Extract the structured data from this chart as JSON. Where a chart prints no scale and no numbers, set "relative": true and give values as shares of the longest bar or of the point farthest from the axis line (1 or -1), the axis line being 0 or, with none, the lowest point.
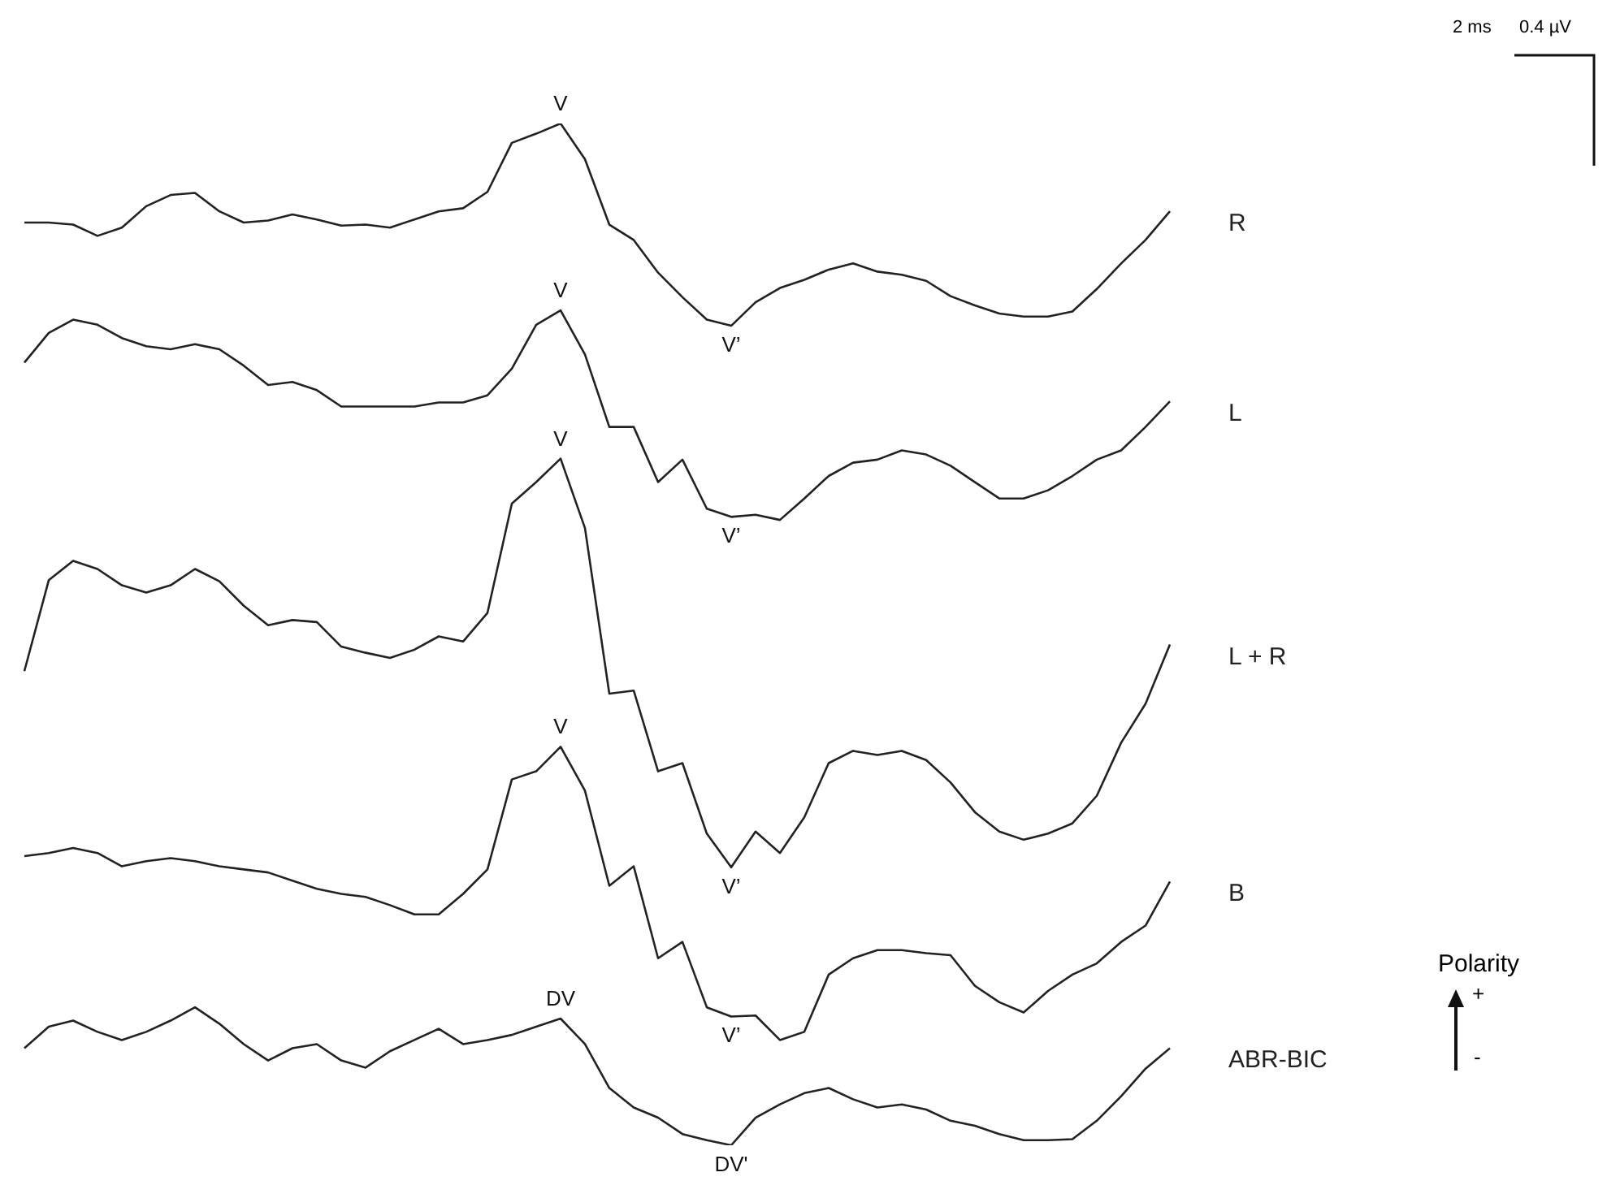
{
  "chart_data": {
    "type": "line",
    "relative": true,
    "legend": false,
    "grid": false,
    "marker": "none",
    "line_style": "solid",
    "categories": [
      null,
      null,
      null,
      null,
      null,
      null,
      null,
      null,
      null,
      null,
      null,
      null,
      null,
      null,
      null,
      null,
      null,
      null,
      null,
      null,
      null,
      null,
      null,
      null,
      null,
      null,
      null,
      null,
      null,
      null,
      null,
      null,
      null,
      null,
      null,
      null,
      null,
      null,
      null,
      null,
      null,
      null,
      null,
      null,
      null,
      null,
      null,
      null
    ],
    "series": [
      {
        "name": "R",
        "color": "#222222",
        "values": [
          0.903,
          0.903,
          0.901,
          0.89,
          0.898,
          0.919,
          0.93,
          0.932,
          0.914,
          0.903,
          0.905,
          0.911,
          0.906,
          0.9,
          0.901,
          0.898,
          0.906,
          0.914,
          0.917,
          0.933,
          0.981,
          0.99,
          1,
          0.965,
          0.901,
          0.886,
          0.854,
          0.83,
          0.808,
          0.802,
          0.825,
          0.839,
          0.847,
          0.857,
          0.863,
          0.855,
          0.852,
          0.846,
          0.831,
          0.822,
          0.814,
          0.811,
          0.811,
          0.816,
          0.838,
          0.863,
          0.886,
          0.914
        ]
      },
      {
        "name": "L",
        "color": "#222222",
        "values": [
          0.766,
          0.795,
          0.808,
          0.803,
          0.79,
          0.782,
          0.779,
          0.784,
          0.779,
          0.763,
          0.744,
          0.747,
          0.739,
          0.723,
          0.723,
          0.723,
          0.723,
          0.727,
          0.727,
          0.734,
          0.76,
          0.803,
          0.817,
          0.774,
          0.703,
          0.703,
          0.649,
          0.671,
          0.623,
          0.615,
          0.617,
          0.612,
          0.633,
          0.655,
          0.668,
          0.671,
          0.68,
          0.676,
          0.665,
          0.649,
          0.633,
          0.633,
          0.641,
          0.655,
          0.671,
          0.68,
          0.703,
          0.728
        ]
      },
      {
        "name": "L + R",
        "color": "#222222",
        "values": [
          0.464,
          0.553,
          0.572,
          0.564,
          0.548,
          0.541,
          0.548,
          0.564,
          0.552,
          0.528,
          0.509,
          0.514,
          0.512,
          0.488,
          0.482,
          0.477,
          0.485,
          0.498,
          0.493,
          0.521,
          0.628,
          0.649,
          0.672,
          0.604,
          0.442,
          0.445,
          0.366,
          0.374,
          0.305,
          0.272,
          0.307,
          0.286,
          0.321,
          0.374,
          0.386,
          0.382,
          0.386,
          0.377,
          0.355,
          0.326,
          0.307,
          0.299,
          0.305,
          0.315,
          0.342,
          0.394,
          0.432,
          0.49
        ]
      },
      {
        "name": "B",
        "color": "#222222",
        "values": [
          0.283,
          0.286,
          0.291,
          0.286,
          0.273,
          0.278,
          0.281,
          0.278,
          0.273,
          0.27,
          0.267,
          0.259,
          0.251,
          0.246,
          0.243,
          0.235,
          0.226,
          0.226,
          0.246,
          0.27,
          0.358,
          0.366,
          0.39,
          0.347,
          0.254,
          0.273,
          0.183,
          0.199,
          0.135,
          0.126,
          0.127,
          0.103,
          0.111,
          0.167,
          0.183,
          0.191,
          0.191,
          0.188,
          0.186,
          0.156,
          0.14,
          0.13,
          0.151,
          0.167,
          0.178,
          0.199,
          0.215,
          0.258
        ]
      },
      {
        "name": "ABR-BIC",
        "color": "#222222",
        "values": [
          0.095,
          0.116,
          0.122,
          0.111,
          0.103,
          0.111,
          0.122,
          0.135,
          0.119,
          0.099,
          0.083,
          0.095,
          0.099,
          0.083,
          0.076,
          0.092,
          0.103,
          0.114,
          0.099,
          0.103,
          0.108,
          0.116,
          0.124,
          0.099,
          0.056,
          0.037,
          0.027,
          0.011,
          0.005,
          0,
          0.027,
          0.04,
          0.051,
          0.056,
          0.045,
          0.037,
          0.04,
          0.035,
          0.024,
          0.019,
          0.011,
          0.005,
          0.005,
          0.006,
          0.024,
          0.048,
          0.075,
          0.095
        ]
      }
    ],
    "annotations": [
      {
        "text": "V",
        "y": 1
      },
      {
        "text": "V",
        "y": 0.817
      },
      {
        "text": "V",
        "y": 0.672
      },
      {
        "text": "V",
        "y": 0.39
      },
      {
        "text": "DV",
        "y": 0.124
      },
      {
        "text": "V’",
        "y": 0.802
      },
      {
        "text": "V’",
        "y": 0.615
      },
      {
        "text": "V’",
        "y": 0.272
      },
      {
        "text": "V’",
        "y": 0.126
      },
      {
        "text": "DV'",
        "y": 0
      },
      "2 ms",
      "0.4 µV",
      "Polarity",
      "+",
      "-"
    ]
  }
}
